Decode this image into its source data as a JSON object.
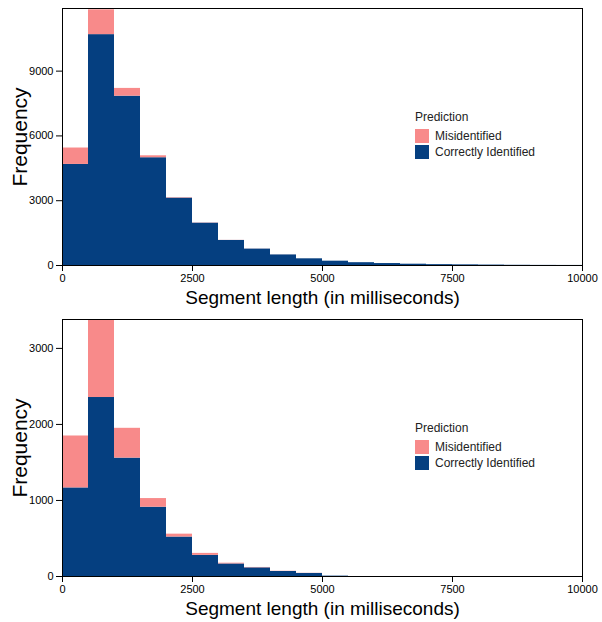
{
  "chart_data": [
    {
      "type": "histogram",
      "xlabel": "Segment length (in milliseconds)",
      "ylabel": "Frequency",
      "legend_title": "Prediction",
      "legend": "right",
      "stacked": true,
      "bins": [
        0,
        500,
        1000,
        1500,
        2000,
        2500,
        3000,
        3500,
        4000,
        4500,
        5000,
        5500,
        6000,
        6500,
        7000,
        7500,
        8000,
        8500,
        9000,
        9500,
        10000
      ],
      "series": [
        {
          "name": "Misidentified",
          "color": "#F88A8A",
          "values": [
            760,
            1150,
            360,
            90,
            20,
            10,
            5,
            3,
            2,
            1,
            0,
            0,
            0,
            0,
            0,
            0,
            0,
            0,
            0,
            0
          ]
        },
        {
          "name": "Correctly Identified",
          "color": "#053F80",
          "values": [
            4680,
            10690,
            7840,
            4990,
            3120,
            1960,
            1160,
            760,
            490,
            310,
            200,
            130,
            90,
            60,
            40,
            30,
            20,
            10,
            5,
            3
          ]
        }
      ],
      "xlim": [
        0,
        10000
      ],
      "xticks": [
        0,
        2500,
        5000,
        7500,
        10000
      ],
      "ylim": [
        0,
        11900
      ],
      "yticks": [
        0,
        3000,
        6000,
        9000
      ]
    },
    {
      "type": "histogram",
      "xlabel": "Segment length (in milliseconds)",
      "ylabel": "Frequency",
      "legend_title": "Prediction",
      "legend": "right",
      "stacked": true,
      "bins": [
        0,
        500,
        1000,
        1500,
        2000,
        2500,
        3000,
        3500,
        4000,
        4500,
        5000,
        5500,
        6000,
        6500,
        7000,
        7500,
        8000,
        8500,
        9000,
        9500,
        10000
      ],
      "series": [
        {
          "name": "Misidentified",
          "color": "#F88A8A",
          "values": [
            683,
            1026,
            392,
            114,
            38,
            26,
            10,
            5,
            3,
            2,
            0,
            0,
            0,
            0,
            0,
            0,
            0,
            0,
            0,
            0
          ]
        },
        {
          "name": "Correctly Identified",
          "color": "#053F80",
          "values": [
            1165,
            2354,
            1557,
            911,
            519,
            278,
            165,
            114,
            66,
            40,
            5,
            0,
            0,
            0,
            0,
            0,
            0,
            0,
            0,
            0
          ]
        }
      ],
      "xlim": [
        0,
        10000
      ],
      "xticks": [
        0,
        2500,
        5000,
        7500,
        10000
      ],
      "ylim": [
        0,
        3380
      ],
      "yticks": [
        0,
        1000,
        2000,
        3000
      ]
    }
  ]
}
